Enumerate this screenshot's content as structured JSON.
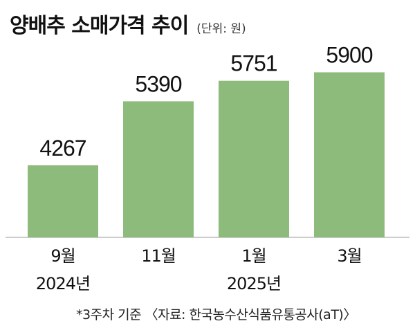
{
  "chart_data": {
    "type": "bar",
    "title": "양배추 소매가격 추이",
    "unit_label": "(단위: 원)",
    "categories": [
      "9월",
      "11월",
      "1월",
      "3월"
    ],
    "years": [
      "2024년",
      "",
      "2025년",
      ""
    ],
    "values": [
      4267,
      5390,
      5751,
      5900
    ],
    "ylim": [
      3000,
      6100
    ],
    "bar_color": "#8dbb7c",
    "footnote": "*3주차 기준 〈자료: 한국농수산식품유통공사(aT)〉",
    "grid": false,
    "legend": "none"
  }
}
